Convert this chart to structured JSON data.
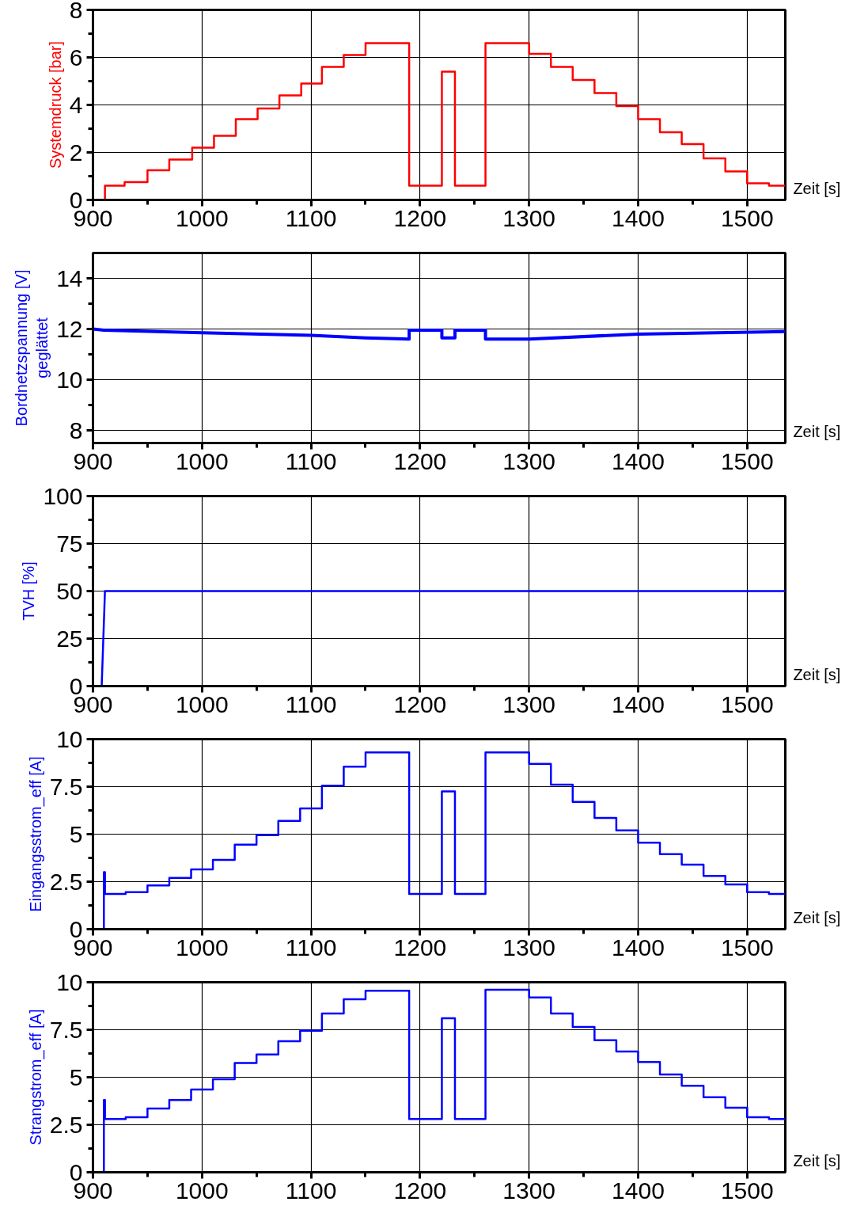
{
  "chart_data": [
    {
      "type": "step",
      "ylabel": "Systemdruck [bar]",
      "xlabel": "Zeit [s]",
      "xlim": [
        900,
        1535
      ],
      "ylim": [
        0,
        8
      ],
      "xticks": [
        900,
        {
          "value": 950,
          "label": null
        },
        1000,
        {
          "value": 1050,
          "label": null
        },
        1100,
        {
          "value": 1150,
          "label": null
        },
        1200,
        {
          "value": 1250,
          "label": null
        },
        1300,
        {
          "value": 1350,
          "label": null
        },
        1400,
        {
          "value": 1450,
          "label": null
        },
        1500
      ],
      "yticks": [
        0,
        {
          "value": 1,
          "label": null
        },
        2,
        {
          "value": 3,
          "label": null
        },
        4,
        {
          "value": 5,
          "label": null
        },
        6,
        {
          "value": 7,
          "label": null
        },
        8
      ],
      "grid": true,
      "x": [
        900,
        911,
        929,
        950,
        970,
        991,
        1011,
        1031,
        1051,
        1071,
        1091,
        1110,
        1130,
        1150,
        1190,
        1220,
        1232,
        1260,
        1300,
        1320,
        1340,
        1360,
        1380,
        1400,
        1420,
        1440,
        1460,
        1480,
        1500,
        1520,
        1535
      ],
      "series": [
        {
          "color": "#ff0000",
          "values": [
            0,
            0.6,
            0.75,
            1.25,
            1.7,
            2.2,
            2.7,
            3.4,
            3.85,
            4.4,
            4.9,
            5.6,
            6.1,
            6.6,
            0.6,
            5.4,
            0.6,
            6.6,
            6.15,
            5.6,
            5.05,
            4.5,
            3.95,
            3.4,
            2.85,
            2.35,
            1.75,
            1.2,
            0.7,
            0.6,
            0.6
          ]
        }
      ]
    },
    {
      "type": "line",
      "ylabel": "Bordnetzspannung [V]\ngeglättet",
      "xlabel": "Zeit [s]",
      "xlim": [
        900,
        1535
      ],
      "ylim": [
        7.5,
        15
      ],
      "xticks": [
        900,
        {
          "value": 950,
          "label": null
        },
        1000,
        {
          "value": 1050,
          "label": null
        },
        1100,
        {
          "value": 1150,
          "label": null
        },
        1200,
        {
          "value": 1250,
          "label": null
        },
        1300,
        {
          "value": 1350,
          "label": null
        },
        1400,
        {
          "value": 1450,
          "label": null
        },
        1500
      ],
      "yticks": [
        8,
        {
          "value": 9,
          "label": null
        },
        10,
        {
          "value": 11,
          "label": null
        },
        12,
        {
          "value": 13,
          "label": null
        },
        14
      ],
      "grid": true,
      "x": [
        900,
        910,
        1000,
        1100,
        1150,
        1190,
        1190,
        1220,
        1220,
        1232,
        1232,
        1260,
        1260,
        1300,
        1400,
        1535
      ],
      "series": [
        {
          "color": "#0000ff",
          "values": [
            12.0,
            11.95,
            11.85,
            11.75,
            11.65,
            11.6,
            11.95,
            11.95,
            11.65,
            11.65,
            11.95,
            11.95,
            11.6,
            11.6,
            11.8,
            11.9
          ]
        }
      ]
    },
    {
      "type": "line",
      "ylabel": "TVH [%]",
      "xlabel": "Zeit [s]",
      "xlim": [
        900,
        1535
      ],
      "ylim": [
        0,
        100
      ],
      "xticks": [
        900,
        {
          "value": 950,
          "label": null
        },
        1000,
        {
          "value": 1050,
          "label": null
        },
        1100,
        {
          "value": 1150,
          "label": null
        },
        1200,
        {
          "value": 1250,
          "label": null
        },
        1300,
        {
          "value": 1350,
          "label": null
        },
        1400,
        {
          "value": 1450,
          "label": null
        },
        1500
      ],
      "yticks": [
        0,
        {
          "value": 12.5,
          "label": null
        },
        25,
        {
          "value": 37.5,
          "label": null
        },
        50,
        {
          "value": 62.5,
          "label": null
        },
        75,
        {
          "value": 87.5,
          "label": null
        },
        100
      ],
      "grid": true,
      "x": [
        900,
        908,
        911,
        1535
      ],
      "series": [
        {
          "color": "#0000ff",
          "values": [
            0,
            0,
            50,
            50
          ]
        }
      ]
    },
    {
      "type": "step",
      "ylabel": "Eingangsstrom_eff [A]",
      "xlabel": "Zeit [s]",
      "xlim": [
        900,
        1535
      ],
      "ylim": [
        0,
        10
      ],
      "xticks": [
        900,
        {
          "value": 950,
          "label": null
        },
        1000,
        {
          "value": 1050,
          "label": null
        },
        1100,
        {
          "value": 1150,
          "label": null
        },
        1200,
        {
          "value": 1250,
          "label": null
        },
        1300,
        {
          "value": 1350,
          "label": null
        },
        1400,
        {
          "value": 1450,
          "label": null
        },
        1500
      ],
      "yticks": [
        0,
        {
          "value": 1.25,
          "label": null
        },
        2.5,
        {
          "value": 3.75,
          "label": null
        },
        5,
        {
          "value": 6.25,
          "label": null
        },
        7.5,
        {
          "value": 8.75,
          "label": null
        },
        10
      ],
      "grid": true,
      "x": [
        900,
        910,
        911,
        930,
        950,
        970,
        990,
        1010,
        1030,
        1050,
        1070,
        1090,
        1110,
        1130,
        1150,
        1190,
        1220,
        1232,
        1260,
        1300,
        1320,
        1340,
        1360,
        1380,
        1400,
        1420,
        1440,
        1460,
        1480,
        1500,
        1520,
        1535
      ],
      "series": [
        {
          "color": "#0000ff",
          "values": [
            0,
            3,
            1.85,
            1.95,
            2.3,
            2.7,
            3.15,
            3.65,
            4.45,
            4.95,
            5.7,
            6.35,
            7.55,
            8.55,
            9.3,
            1.85,
            7.25,
            1.85,
            9.3,
            8.7,
            7.6,
            6.7,
            5.85,
            5.2,
            4.55,
            3.95,
            3.4,
            2.8,
            2.35,
            1.95,
            1.85,
            1.85
          ]
        }
      ]
    },
    {
      "type": "step",
      "ylabel": "Strangstrom_eff [A]",
      "xlabel": "Zeit [s]",
      "xlim": [
        900,
        1535
      ],
      "ylim": [
        0,
        10
      ],
      "xticks": [
        900,
        {
          "value": 950,
          "label": null
        },
        1000,
        {
          "value": 1050,
          "label": null
        },
        1100,
        {
          "value": 1150,
          "label": null
        },
        1200,
        {
          "value": 1250,
          "label": null
        },
        1300,
        {
          "value": 1350,
          "label": null
        },
        1400,
        {
          "value": 1450,
          "label": null
        },
        1500
      ],
      "yticks": [
        0,
        {
          "value": 1.25,
          "label": null
        },
        2.5,
        {
          "value": 3.75,
          "label": null
        },
        5,
        {
          "value": 6.25,
          "label": null
        },
        7.5,
        {
          "value": 8.75,
          "label": null
        },
        10
      ],
      "grid": true,
      "x": [
        900,
        910,
        911,
        930,
        950,
        970,
        990,
        1010,
        1030,
        1050,
        1070,
        1090,
        1110,
        1130,
        1150,
        1190,
        1220,
        1232,
        1260,
        1300,
        1320,
        1340,
        1360,
        1380,
        1400,
        1420,
        1440,
        1460,
        1480,
        1500,
        1520,
        1535
      ],
      "series": [
        {
          "color": "#0000ff",
          "values": [
            0,
            3.8,
            2.8,
            2.9,
            3.35,
            3.8,
            4.35,
            4.9,
            5.75,
            6.2,
            6.9,
            7.45,
            8.35,
            9.1,
            9.55,
            2.8,
            8.1,
            2.8,
            9.6,
            9.2,
            8.35,
            7.65,
            6.95,
            6.35,
            5.8,
            5.15,
            4.55,
            3.95,
            3.4,
            2.9,
            2.8,
            2.8
          ]
        }
      ]
    }
  ]
}
